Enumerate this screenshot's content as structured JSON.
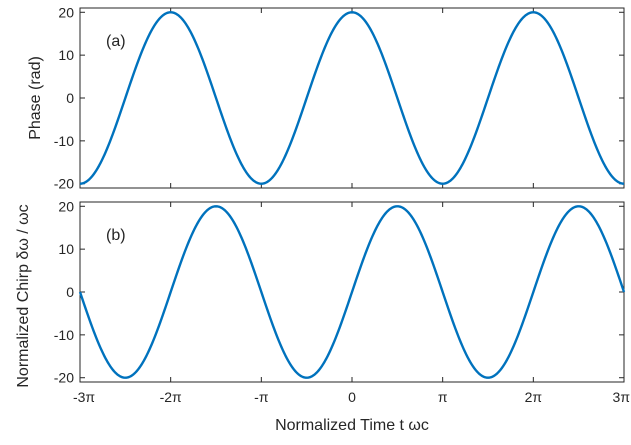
{
  "chart_data": [
    {
      "type": "line",
      "panel_label": "(a)",
      "xlabel": "",
      "ylabel": "Phase (rad)",
      "xlim": [
        -9.4248,
        9.4248
      ],
      "ylim": [
        -21,
        21
      ],
      "x_tick_values": [
        -9.4248,
        -6.2832,
        -3.1416,
        0,
        3.1416,
        6.2832,
        9.4248
      ],
      "x_tick_labels": [],
      "y_tick_values": [
        20,
        10,
        0,
        -10,
        -20
      ],
      "y_tick_labels": [
        "20",
        "10",
        "0",
        "-10",
        "-20"
      ],
      "function": "cos",
      "amplitude": 20,
      "phase_offset": 0,
      "samples": 400,
      "color": "#0072bd",
      "grid": false
    },
    {
      "type": "line",
      "panel_label": "(b)",
      "xlabel": "Normalized Time  t  ωc",
      "ylabel": "Normalized Chirp δω  /  ωc",
      "xlim": [
        -9.4248,
        9.4248
      ],
      "ylim": [
        -21,
        21
      ],
      "x_tick_values": [
        -9.4248,
        -6.2832,
        -3.1416,
        0,
        3.1416,
        6.2832,
        9.4248
      ],
      "x_tick_labels": [
        "-3π",
        "-2π",
        "-π",
        "0",
        "π",
        "2π",
        "3π"
      ],
      "y_tick_values": [
        20,
        10,
        0,
        -10,
        -20
      ],
      "y_tick_labels": [
        "20",
        "10",
        "0",
        "-10",
        "-20"
      ],
      "function": "sin",
      "amplitude": 20,
      "phase_offset": 0,
      "samples": 400,
      "color": "#0072bd",
      "grid": false
    }
  ]
}
